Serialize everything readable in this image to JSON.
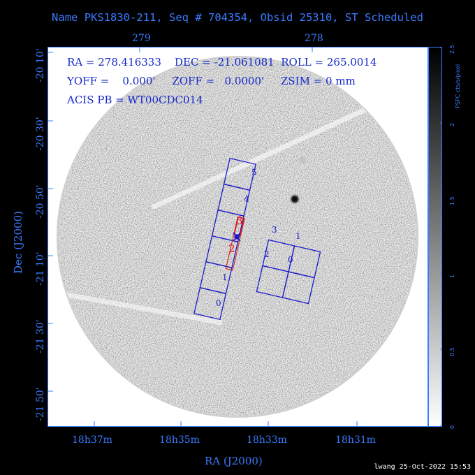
{
  "title": "Name PKS1830-211, Seq # 704354, Obsid 25310, ST Scheduled",
  "top_axis": {
    "ticks": [
      "279",
      "278"
    ]
  },
  "left_axis": {
    "label": "Dec (J2000)",
    "ticks": [
      "-20 10'",
      "-20 30'",
      "-20 50'",
      "-21 10'",
      "-21 30'",
      "-21 50'"
    ]
  },
  "bottom_axis": {
    "label": "RA (J2000)",
    "ticks": [
      "18h37m",
      "18h35m",
      "18h33m",
      "18h31m"
    ]
  },
  "info": {
    "line1": "RA = 278.416333    DEC = -21.061081  ROLL = 265.0014",
    "line2": "YOFF =    0.000'     ZOFF =   0.0000'     ZSIM = 0 mm",
    "line3": "ACIS PB = WT00CDC014"
  },
  "colorbar": {
    "label": "PSPC cts/s/pixel",
    "ticks": [
      "0",
      "0.5",
      "1",
      "1.5",
      "2",
      "2.5"
    ]
  },
  "chips_i": [
    "0",
    "1",
    "2",
    "3"
  ],
  "chips_s": [
    "0",
    "1",
    "2",
    "3",
    "4",
    "5"
  ],
  "red_labels": [
    "2",
    "3"
  ],
  "footer": "lwang 25-Oct-2022 15:53",
  "colors": {
    "background": "#000000",
    "axis_blue": "#3a7bff",
    "chip_outline": "#1a1acc",
    "overlay_red": "#e01010"
  }
}
